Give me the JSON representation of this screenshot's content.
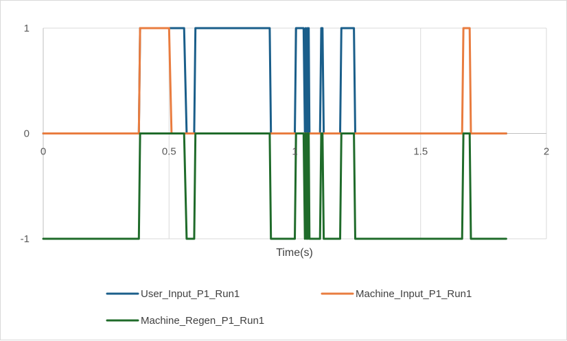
{
  "chart_data": {
    "type": "line",
    "title": "",
    "xlabel": "Time(s)",
    "ylabel": "",
    "xlim": [
      0,
      2
    ],
    "ylim": [
      -1,
      1
    ],
    "x_ticks": [
      "0",
      "0.5",
      "1",
      "1.5",
      "2"
    ],
    "y_ticks": [
      "1",
      "0",
      "-1"
    ],
    "grid": true,
    "legend_position": "bottom",
    "series": [
      {
        "name": "User_Input_P1_Run1",
        "color": "#1a5e8a",
        "x": [
          0,
          0.38,
          0.385,
          0.56,
          0.57,
          0.6,
          0.605,
          0.9,
          0.905,
          1.0,
          1.005,
          1.035,
          1.04,
          1.043,
          1.047,
          1.05,
          1.052,
          1.055,
          1.058,
          1.1,
          1.105,
          1.11,
          1.115,
          1.18,
          1.185,
          1.235,
          1.24,
          1.84
        ],
        "y": [
          0,
          0,
          1,
          1,
          0,
          0,
          1,
          1,
          0,
          0,
          1,
          1,
          0,
          1,
          0,
          1,
          0,
          1,
          0,
          0,
          1,
          1,
          0,
          0,
          1,
          1,
          0,
          0
        ]
      },
      {
        "name": "Machine_Input_P1_Run1",
        "color": "#e97c3f",
        "x": [
          0,
          0.38,
          0.385,
          0.5,
          0.51,
          1.665,
          1.67,
          1.695,
          1.7,
          1.84
        ],
        "y": [
          0,
          0,
          1,
          1,
          0,
          0,
          1,
          1,
          0,
          0
        ]
      },
      {
        "name": "Machine_Regen_P1_Run1",
        "color": "#1f6b2a",
        "x": [
          0,
          0.38,
          0.385,
          0.56,
          0.57,
          0.6,
          0.605,
          0.9,
          0.905,
          1.0,
          1.005,
          1.035,
          1.04,
          1.043,
          1.047,
          1.05,
          1.052,
          1.055,
          1.058,
          1.1,
          1.105,
          1.11,
          1.115,
          1.18,
          1.185,
          1.235,
          1.24,
          1.665,
          1.67,
          1.695,
          1.7,
          1.84
        ],
        "y": [
          -1,
          -1,
          0,
          0,
          -1,
          -1,
          0,
          0,
          -1,
          -1,
          0,
          0,
          -1,
          0,
          -1,
          0,
          -1,
          0,
          -1,
          -1,
          0,
          0,
          -1,
          -1,
          0,
          0,
          -1,
          -1,
          0,
          0,
          -1,
          -1
        ]
      }
    ]
  }
}
